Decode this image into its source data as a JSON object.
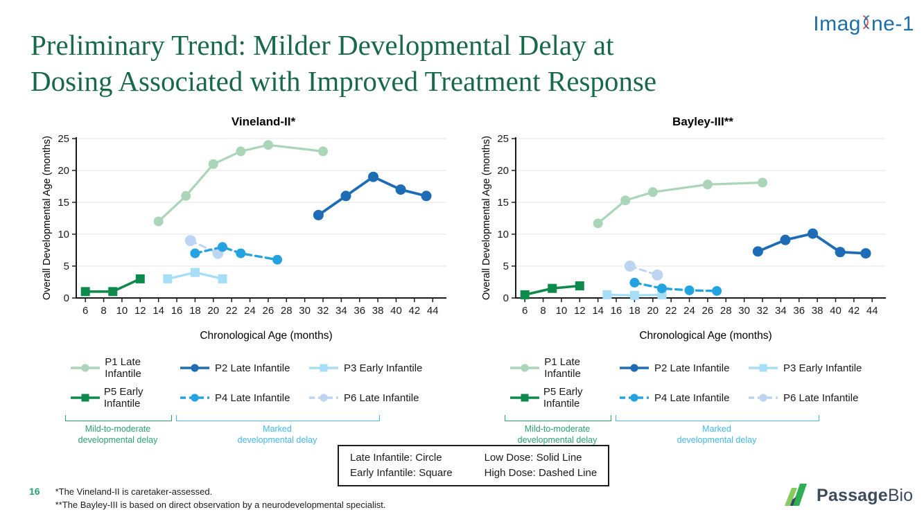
{
  "header": {
    "imagine_left": "Imag",
    "imagine_right": "ne-1",
    "title_line1": "Preliminary Trend: Milder Developmental Delay at",
    "title_line2": "Dosing Associated with Improved Treatment Response"
  },
  "chart_data": [
    {
      "type": "line",
      "title": "Vineland-II*",
      "xlabel": "Chronological Age (months)",
      "ylabel": "Overall Developmental Age (months)",
      "xlim": [
        5,
        45.5
      ],
      "ylim": [
        0,
        25
      ],
      "xticks": [
        6,
        8,
        10,
        12,
        14,
        16,
        18,
        20,
        22,
        24,
        26,
        28,
        30,
        32,
        34,
        36,
        38,
        40,
        42,
        44
      ],
      "yticks": [
        0,
        5,
        10,
        15,
        20,
        25
      ],
      "grid": "horizontal",
      "zorder": [
        0,
        2,
        4,
        5,
        3,
        1
      ],
      "series": [
        {
          "name": "P1 Late Infantile",
          "color": "#aad5b8",
          "marker": "circle",
          "dash": false,
          "lw": 3.2,
          "ms": 7,
          "points": [
            [
              14,
              12
            ],
            [
              17,
              16
            ],
            [
              20,
              21
            ],
            [
              23,
              23
            ],
            [
              26,
              24
            ],
            [
              32,
              23
            ]
          ]
        },
        {
          "name": "P2 Late Infantile",
          "color": "#1e6cb5",
          "marker": "circle",
          "dash": false,
          "lw": 3.8,
          "ms": 7.5,
          "points": [
            [
              31.5,
              13
            ],
            [
              34.5,
              16
            ],
            [
              37.5,
              19
            ],
            [
              40.5,
              17
            ],
            [
              43.3,
              16
            ]
          ]
        },
        {
          "name": "P3 Early Infantile",
          "color": "#a7def7",
          "marker": "square",
          "dash": false,
          "lw": 3.4,
          "ms": 6.5,
          "points": [
            [
              15,
              3
            ],
            [
              18,
              4
            ],
            [
              21,
              3
            ]
          ]
        },
        {
          "name": "P4 Late Infantile",
          "color": "#25a3e1",
          "marker": "circle",
          "dash": true,
          "lw": 3.4,
          "ms": 7,
          "points": [
            [
              18,
              7
            ],
            [
              21,
              8
            ],
            [
              23,
              7
            ],
            [
              27,
              6
            ]
          ]
        },
        {
          "name": "P5 Early Infantile",
          "color": "#0f8a4d",
          "marker": "square",
          "dash": false,
          "lw": 3.6,
          "ms": 6.5,
          "points": [
            [
              6,
              1
            ],
            [
              9,
              1
            ],
            [
              12,
              3
            ]
          ]
        },
        {
          "name": "P6 Late Infantile",
          "color": "#bdd5f2",
          "marker": "circle",
          "dash": true,
          "lw": 3,
          "ms": 8,
          "points": [
            [
              17.5,
              9
            ],
            [
              20.5,
              7
            ]
          ]
        }
      ]
    },
    {
      "type": "line",
      "title": "Bayley-III**",
      "xlabel": "Chronological Age (months)",
      "ylabel": "Overall Developmental Age (months)",
      "xlim": [
        5,
        45.5
      ],
      "ylim": [
        0,
        25
      ],
      "xticks": [
        6,
        8,
        10,
        12,
        14,
        16,
        18,
        20,
        22,
        24,
        26,
        28,
        30,
        32,
        34,
        36,
        38,
        40,
        42,
        44
      ],
      "yticks": [
        0,
        5,
        10,
        15,
        20,
        25
      ],
      "grid": "horizontal",
      "zorder": [
        0,
        2,
        4,
        5,
        3,
        1
      ],
      "series": [
        {
          "name": "P1 Late Infantile",
          "color": "#aad5b8",
          "marker": "circle",
          "dash": false,
          "lw": 3.2,
          "ms": 7,
          "points": [
            [
              14,
              11.7
            ],
            [
              17,
              15.3
            ],
            [
              20,
              16.6
            ],
            [
              26,
              17.8
            ],
            [
              32,
              18.1
            ]
          ]
        },
        {
          "name": "P2 Late Infantile",
          "color": "#1e6cb5",
          "marker": "circle",
          "dash": false,
          "lw": 3.8,
          "ms": 7.5,
          "points": [
            [
              31.5,
              7.3
            ],
            [
              34.5,
              9.1
            ],
            [
              37.5,
              10.1
            ],
            [
              40.5,
              7.2
            ],
            [
              43.3,
              7
            ]
          ]
        },
        {
          "name": "P3 Early Infantile",
          "color": "#a7def7",
          "marker": "square",
          "dash": false,
          "lw": 3.4,
          "ms": 6.5,
          "points": [
            [
              15,
              0.5
            ],
            [
              18,
              0.4
            ],
            [
              21,
              0.5
            ]
          ]
        },
        {
          "name": "P4 Late Infantile",
          "color": "#25a3e1",
          "marker": "circle",
          "dash": true,
          "lw": 3.4,
          "ms": 7,
          "points": [
            [
              18,
              2.4
            ],
            [
              21,
              1.5
            ],
            [
              24,
              1.2
            ],
            [
              27,
              1.1
            ]
          ]
        },
        {
          "name": "P5 Early Infantile",
          "color": "#0f8a4d",
          "marker": "square",
          "dash": false,
          "lw": 3.6,
          "ms": 6.5,
          "points": [
            [
              6,
              0.5
            ],
            [
              9,
              1.5
            ],
            [
              12,
              1.9
            ]
          ]
        },
        {
          "name": "P6 Late Infantile",
          "color": "#bdd5f2",
          "marker": "circle",
          "dash": true,
          "lw": 3,
          "ms": 8,
          "points": [
            [
              17.5,
              5
            ],
            [
              20.5,
              3.6
            ]
          ]
        }
      ]
    }
  ],
  "legend": {
    "rows": [
      [
        0,
        1,
        2
      ],
      [
        4,
        3,
        5
      ]
    ]
  },
  "brackets": {
    "mild": {
      "line1": "Mild-to-moderate",
      "line2": "developmental delay",
      "color": "#2aa36b"
    },
    "marked": {
      "line1": "Marked",
      "line2": "developmental delay",
      "color": "#41b8ec"
    }
  },
  "info_box": {
    "left_line1": "Late Infantile: Circle",
    "left_line2": "Early Infantile: Square",
    "right_line1": "Low Dose: Solid Line",
    "right_line2": "High Dose: Dashed Line"
  },
  "footer": {
    "page_number": "16",
    "note1": "*The Vineland-II is caretaker-assessed.",
    "note2": "**The Bayley-III is based on direct observation by a neurodevelopmental specialist."
  },
  "passage_logo": {
    "bold": "Passage",
    "light": "Bio"
  },
  "colors": {
    "title_green": "#17694a",
    "imagine_blue": "#1d6fa9",
    "axis": "#1a1a1a",
    "grid": "#e8eaea",
    "bracket_green": "#2aa36b",
    "bracket_blue": "#41b8ec",
    "slate": "#3d4b5c"
  }
}
